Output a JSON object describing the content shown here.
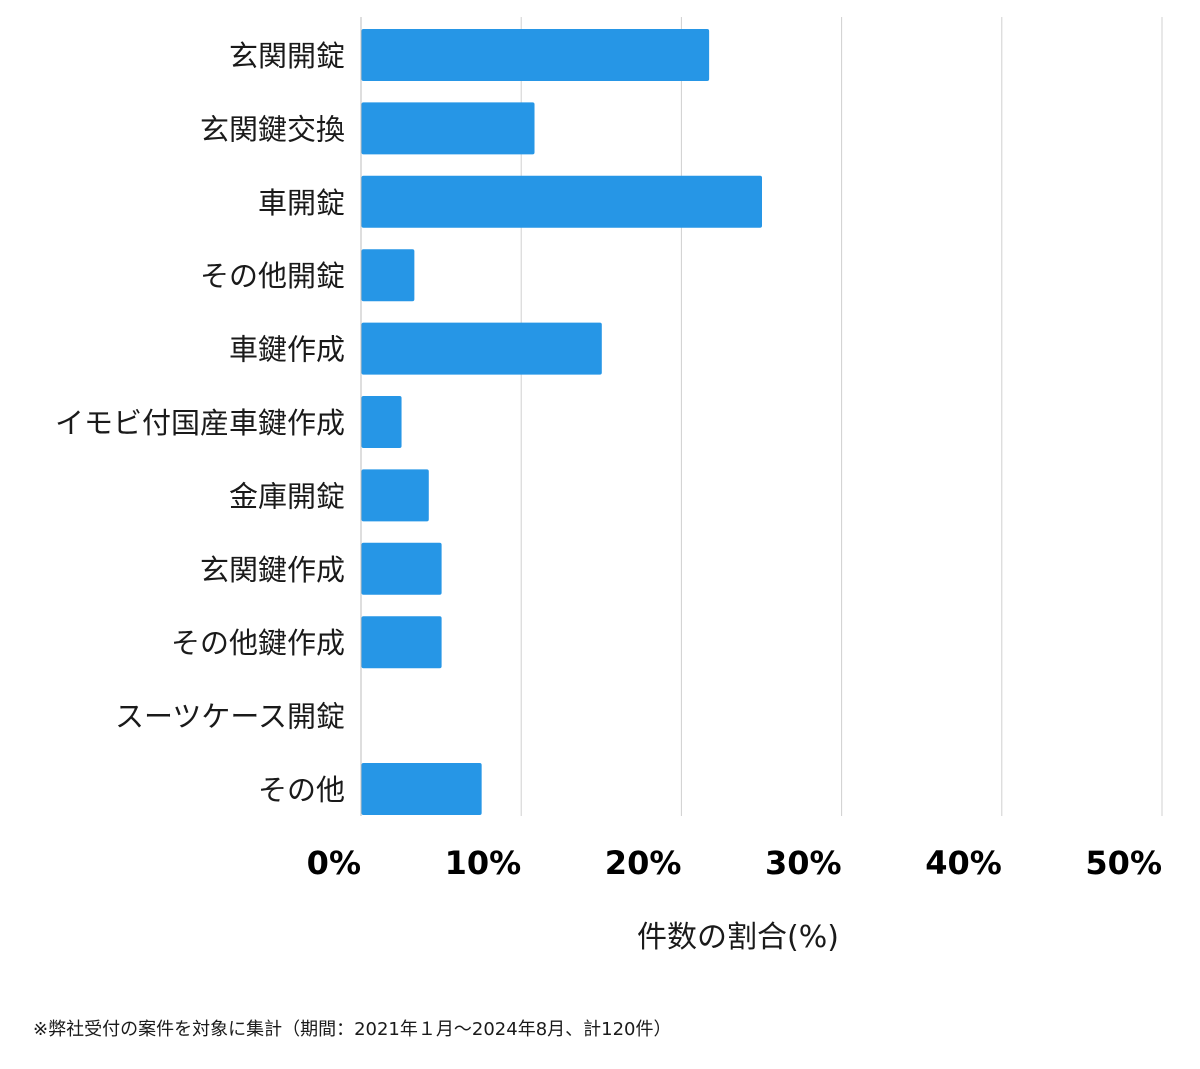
{
  "chart_data": {
    "type": "bar",
    "orientation": "horizontal",
    "categories": [
      "玄関開錠",
      "玄関鍵交換",
      "車開錠",
      "その他開錠",
      "車鍵作成",
      "イモビ付国産車鍵作成",
      "金庫開錠",
      "玄関鍵作成",
      "その他鍵作成",
      "スーツケース開錠",
      "その他"
    ],
    "values": [
      21.7,
      10.8,
      25.0,
      3.3,
      15.0,
      2.5,
      4.2,
      5.0,
      5.0,
      0,
      7.5
    ],
    "xlim": [
      0,
      50
    ],
    "x_ticks": [
      "0%",
      "10%",
      "20%",
      "30%",
      "40%",
      "50%"
    ],
    "xlabel": "件数の割合(%)",
    "grid": "vertical",
    "bar_color": "#2696e6",
    "grid_color": "#d0d0d0"
  },
  "footnote": "※弊社受付の案件を対象に集計（期間：2021年１月〜2024年8月、計120件）"
}
